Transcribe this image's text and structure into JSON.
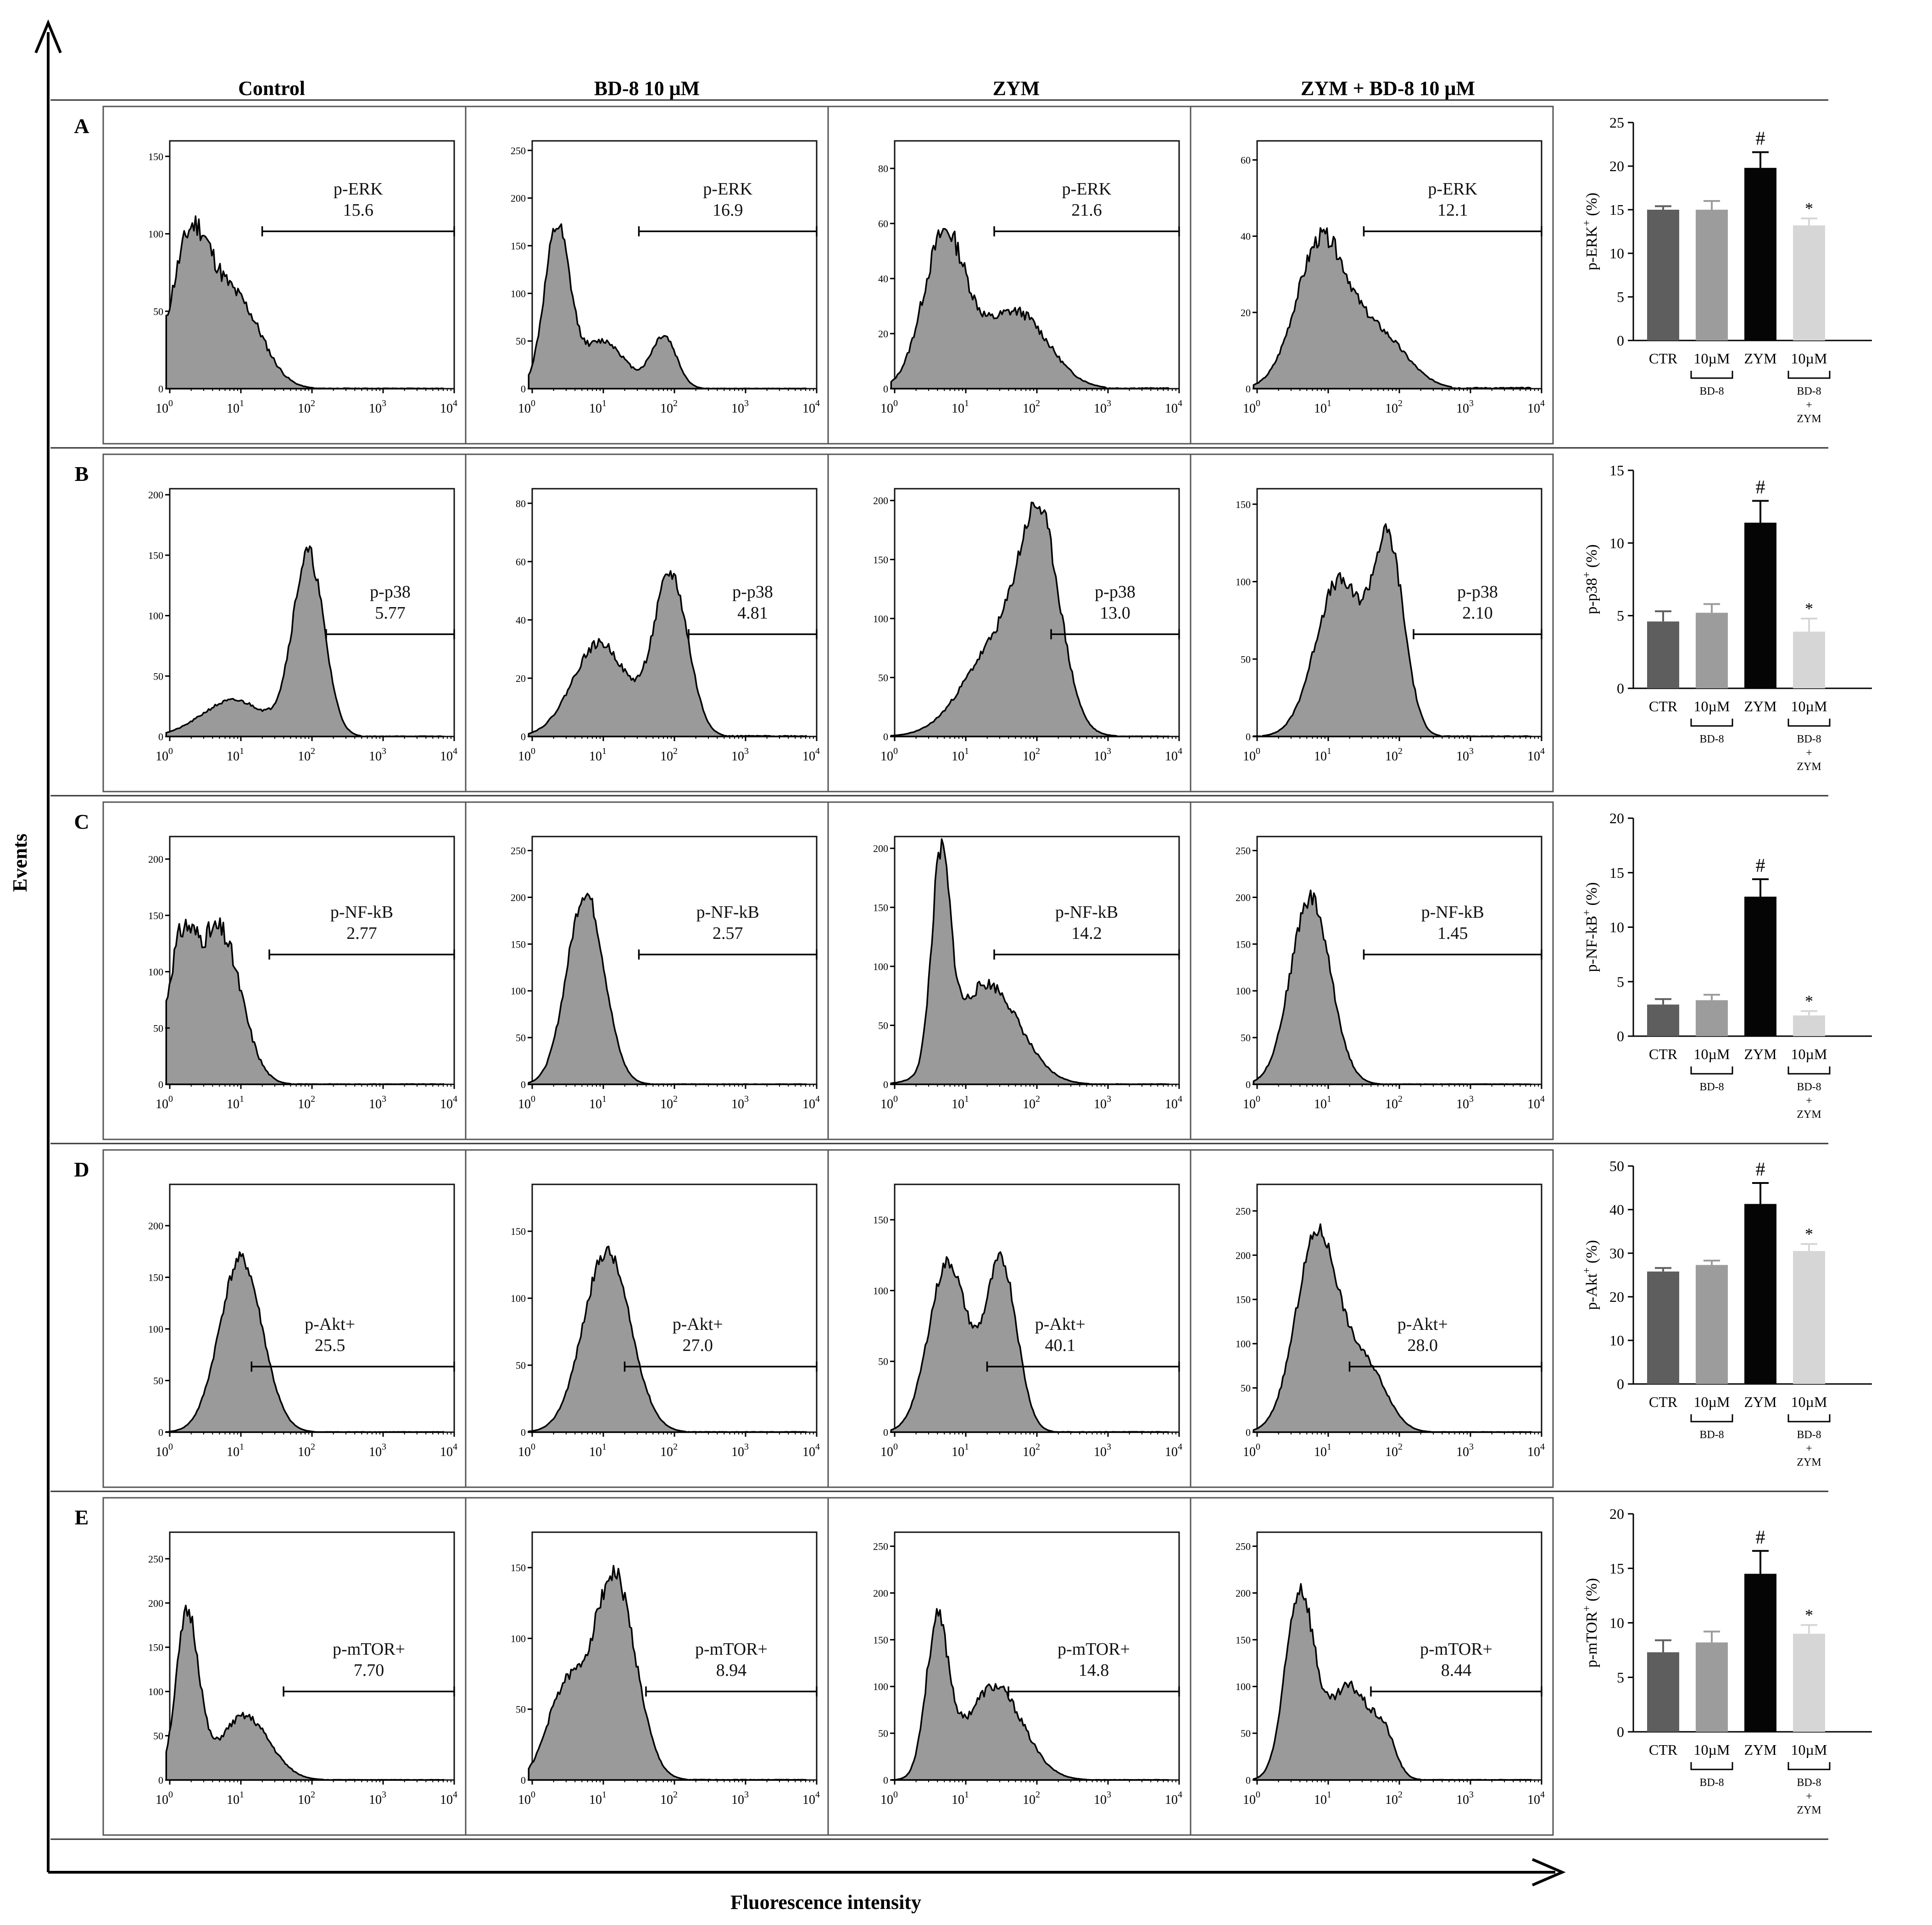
{
  "figure": {
    "columns": [
      "Control",
      "BD-8 10 μM",
      "ZYM",
      "ZYM + BD-8 10 μM"
    ],
    "y_axis_label": "Events",
    "x_axis_label": "Fluorescence intensity",
    "x_ticks": [
      {
        "base": "10",
        "exp": "0"
      },
      {
        "base": "10",
        "exp": "1"
      },
      {
        "base": "10",
        "exp": "2"
      },
      {
        "base": "10",
        "exp": "3"
      },
      {
        "base": "10",
        "exp": "4"
      }
    ],
    "bar_group_labels": {
      "bd8": "BD-8",
      "combo_line1": "BD-8",
      "combo_line2": "+",
      "combo_line3": "ZYM"
    }
  },
  "chart_data": [
    {
      "row": "A",
      "marker": "p-ERK",
      "histograms": [
        {
          "type": "histogram",
          "group": "Control",
          "label": "p-ERK",
          "value": "15.6",
          "ylim": [
            0,
            160
          ],
          "yticks": [
            0,
            50,
            100,
            150
          ],
          "gate": [
            1.3,
            4
          ],
          "peaks": [
            [
              0.3,
              95,
              0.28
            ],
            [
              0.95,
              55,
              0.35
            ]
          ],
          "noise": 0.16,
          "seed": 11
        },
        {
          "type": "histogram",
          "group": "BD-8 10 μM",
          "label": "p-ERK",
          "value": "16.9",
          "ylim": [
            0,
            260
          ],
          "yticks": [
            0,
            50,
            100,
            150,
            200,
            250
          ],
          "gate": [
            1.5,
            4
          ],
          "peaks": [
            [
              0.35,
              165,
              0.18
            ],
            [
              1.0,
              50,
              0.3
            ],
            [
              1.85,
              55,
              0.18
            ]
          ],
          "noise": 0.12,
          "seed": 12
        },
        {
          "type": "histogram",
          "group": "ZYM",
          "label": "p-ERK",
          "value": "21.6",
          "ylim": [
            0,
            90
          ],
          "yticks": [
            0,
            20,
            40,
            60,
            80
          ],
          "gate": [
            1.4,
            4
          ],
          "peaks": [
            [
              0.7,
              55,
              0.3
            ],
            [
              1.7,
              28,
              0.45
            ]
          ],
          "noise": 0.14,
          "seed": 13
        },
        {
          "type": "histogram",
          "group": "ZYM + BD-8 10 μM",
          "label": "p-ERK",
          "value": "12.1",
          "ylim": [
            0,
            65
          ],
          "yticks": [
            0,
            20,
            40,
            60
          ],
          "gate": [
            1.5,
            4
          ],
          "peaks": [
            [
              0.9,
              38,
              0.35
            ],
            [
              1.7,
              14,
              0.4
            ]
          ],
          "noise": 0.12,
          "seed": 14
        }
      ],
      "bars": {
        "type": "bar",
        "categories": [
          "CTR",
          "10µM",
          "ZYM",
          "10µM"
        ],
        "values": [
          15,
          15,
          19.8,
          13.2
        ],
        "errors": [
          0.4,
          1.0,
          1.8,
          0.8
        ],
        "marks": [
          "",
          "",
          "#",
          "*"
        ],
        "ylim": [
          0,
          25
        ],
        "yticks": [
          0,
          5,
          10,
          15,
          20,
          25
        ],
        "ylabel": "p-ERK",
        "ylabel_sup": "+",
        "ylabel_unit": "(%)"
      }
    },
    {
      "row": "B",
      "marker": "p-p38",
      "histograms": [
        {
          "type": "histogram",
          "group": "Control",
          "label": "p-p38",
          "value": "5.77",
          "ylim": [
            0,
            205
          ],
          "yticks": [
            0,
            50,
            100,
            150,
            200
          ],
          "gate": [
            2.2,
            4
          ],
          "peaks": [
            [
              0.9,
              30,
              0.45
            ],
            [
              1.95,
              150,
              0.22
            ]
          ],
          "noise": 0.1,
          "seed": 21
        },
        {
          "type": "histogram",
          "group": "BD-8 10 μM",
          "label": "p-p38",
          "value": "4.81",
          "ylim": [
            0,
            85
          ],
          "yticks": [
            0,
            20,
            40,
            60,
            80
          ],
          "gate": [
            2.2,
            4
          ],
          "peaks": [
            [
              0.95,
              32,
              0.38
            ],
            [
              1.95,
              55,
              0.24
            ]
          ],
          "noise": 0.1,
          "seed": 22
        },
        {
          "type": "histogram",
          "group": "ZYM",
          "label": "p-p38",
          "value": "13.0",
          "ylim": [
            0,
            210
          ],
          "yticks": [
            0,
            50,
            100,
            150,
            200
          ],
          "gate": [
            2.2,
            4
          ],
          "peaks": [
            [
              1.5,
              80,
              0.5
            ],
            [
              2.05,
              150,
              0.28
            ]
          ],
          "noise": 0.1,
          "seed": 23
        },
        {
          "type": "histogram",
          "group": "ZYM + BD-8 10 μM",
          "label": "p-p38",
          "value": "2.10",
          "ylim": [
            0,
            160
          ],
          "yticks": [
            0,
            50,
            100,
            150
          ],
          "gate": [
            2.2,
            4
          ],
          "peaks": [
            [
              1.15,
              100,
              0.33
            ],
            [
              1.85,
              120,
              0.22
            ]
          ],
          "noise": 0.1,
          "seed": 24
        }
      ],
      "bars": {
        "type": "bar",
        "categories": [
          "CTR",
          "10µM",
          "ZYM",
          "10µM"
        ],
        "values": [
          4.6,
          5.2,
          11.4,
          3.9
        ],
        "errors": [
          0.7,
          0.6,
          1.5,
          0.9
        ],
        "marks": [
          "",
          "",
          "#",
          "*"
        ],
        "ylim": [
          0,
          15
        ],
        "yticks": [
          0,
          5,
          10,
          15
        ],
        "ylabel": "p-p38",
        "ylabel_sup": "+",
        "ylabel_unit": "(%)"
      }
    },
    {
      "row": "C",
      "marker": "p-NF-kB",
      "histograms": [
        {
          "type": "histogram",
          "group": "Control",
          "label": "p-NF-kB",
          "value": "2.77",
          "ylim": [
            0,
            220
          ],
          "yticks": [
            0,
            50,
            100,
            150,
            200
          ],
          "gate": [
            1.4,
            4
          ],
          "peaks": [
            [
              0.15,
              110,
              0.2
            ],
            [
              0.7,
              135,
              0.3
            ]
          ],
          "noise": 0.16,
          "seed": 31
        },
        {
          "type": "histogram",
          "group": "BD-8 10 μM",
          "label": "p-NF-kB",
          "value": "2.57",
          "ylim": [
            0,
            265
          ],
          "yticks": [
            0,
            50,
            100,
            150,
            200,
            250
          ],
          "gate": [
            1.5,
            4
          ],
          "peaks": [
            [
              0.75,
              205,
              0.26
            ]
          ],
          "noise": 0.08,
          "seed": 32
        },
        {
          "type": "histogram",
          "group": "ZYM",
          "label": "p-NF-kB",
          "value": "14.2",
          "ylim": [
            0,
            210
          ],
          "yticks": [
            0,
            50,
            100,
            150,
            200
          ],
          "gate": [
            1.4,
            4
          ],
          "peaks": [
            [
              0.65,
              170,
              0.13
            ],
            [
              1.3,
              85,
              0.45
            ]
          ],
          "noise": 0.12,
          "seed": 33
        },
        {
          "type": "histogram",
          "group": "ZYM + BD-8 10 μM",
          "label": "p-NF-kB",
          "value": "1.45",
          "ylim": [
            0,
            265
          ],
          "yticks": [
            0,
            50,
            100,
            150,
            200,
            250
          ],
          "gate": [
            1.5,
            4
          ],
          "peaks": [
            [
              0.75,
              200,
              0.28
            ]
          ],
          "noise": 0.1,
          "seed": 34
        }
      ],
      "bars": {
        "type": "bar",
        "categories": [
          "CTR",
          "10µM",
          "ZYM",
          "10µM"
        ],
        "values": [
          2.9,
          3.3,
          12.8,
          1.9
        ],
        "errors": [
          0.5,
          0.5,
          1.6,
          0.4
        ],
        "marks": [
          "",
          "",
          "#",
          "*"
        ],
        "ylim": [
          0,
          20
        ],
        "yticks": [
          0,
          5,
          10,
          15,
          20
        ],
        "ylabel": "p-NF-kB",
        "ylabel_sup": "+",
        "ylabel_unit": "(%)"
      }
    },
    {
      "row": "D",
      "marker": "p-Akt+",
      "histograms": [
        {
          "type": "histogram",
          "group": "Control",
          "label": "p-Akt+",
          "value": "25.5",
          "ylim": [
            0,
            240
          ],
          "yticks": [
            0,
            50,
            100,
            150,
            200
          ],
          "gate": [
            1.15,
            4
          ],
          "peaks": [
            [
              1.0,
              168,
              0.3
            ]
          ],
          "noise": 0.08,
          "seed": 41
        },
        {
          "type": "histogram",
          "group": "BD-8 10 μM",
          "label": "p-Akt+",
          "value": "27.0",
          "ylim": [
            0,
            185
          ],
          "yticks": [
            0,
            50,
            100,
            150
          ],
          "gate": [
            1.3,
            4
          ],
          "peaks": [
            [
              1.05,
              135,
              0.33
            ]
          ],
          "noise": 0.08,
          "seed": 42
        },
        {
          "type": "histogram",
          "group": "ZYM",
          "label": "p-Akt+",
          "value": "40.1",
          "ylim": [
            0,
            175
          ],
          "yticks": [
            0,
            50,
            100,
            150
          ],
          "gate": [
            1.3,
            4
          ],
          "peaks": [
            [
              0.75,
              120,
              0.27
            ],
            [
              1.5,
              120,
              0.22
            ]
          ],
          "noise": 0.08,
          "seed": 43
        },
        {
          "type": "histogram",
          "group": "ZYM + BD-8 10 μM",
          "label": "p-Akt+",
          "value": "28.0",
          "ylim": [
            0,
            280
          ],
          "yticks": [
            0,
            50,
            100,
            150,
            200,
            250
          ],
          "gate": [
            1.3,
            4
          ],
          "peaks": [
            [
              0.85,
              225,
              0.3
            ],
            [
              1.55,
              70,
              0.28
            ]
          ],
          "noise": 0.08,
          "seed": 44
        }
      ],
      "bars": {
        "type": "bar",
        "categories": [
          "CTR",
          "10µM",
          "ZYM",
          "10µM"
        ],
        "values": [
          25.8,
          27.3,
          41.3,
          30.5
        ],
        "errors": [
          0.8,
          1.0,
          4.8,
          1.6
        ],
        "marks": [
          "",
          "",
          "#",
          "*"
        ],
        "ylim": [
          0,
          50
        ],
        "yticks": [
          0,
          10,
          20,
          30,
          40,
          50
        ],
        "ylabel": "p-Akt",
        "ylabel_sup": "+",
        "ylabel_unit": "(%)"
      }
    },
    {
      "row": "E",
      "marker": "p-mTOR+",
      "histograms": [
        {
          "type": "histogram",
          "group": "Control",
          "label": "p-mTOR+",
          "value": "7.70",
          "ylim": [
            0,
            280
          ],
          "yticks": [
            0,
            50,
            100,
            150,
            200,
            250
          ],
          "gate": [
            1.6,
            4
          ],
          "peaks": [
            [
              0.25,
              185,
              0.16
            ],
            [
              1.05,
              72,
              0.35
            ]
          ],
          "noise": 0.12,
          "seed": 51
        },
        {
          "type": "histogram",
          "group": "BD-8 10 μM",
          "label": "p-mTOR+",
          "value": "8.94",
          "ylim": [
            0,
            175
          ],
          "yticks": [
            0,
            50,
            100,
            150
          ],
          "gate": [
            1.6,
            4
          ],
          "peaks": [
            [
              0.45,
              60,
              0.25
            ],
            [
              1.15,
              145,
              0.3
            ]
          ],
          "noise": 0.1,
          "seed": 52
        },
        {
          "type": "histogram",
          "group": "ZYM",
          "label": "p-mTOR+",
          "value": "14.8",
          "ylim": [
            0,
            265
          ],
          "yticks": [
            0,
            50,
            100,
            150,
            200,
            250
          ],
          "gate": [
            1.6,
            4
          ],
          "peaks": [
            [
              0.6,
              160,
              0.16
            ],
            [
              1.4,
              100,
              0.4
            ]
          ],
          "noise": 0.12,
          "seed": 53
        },
        {
          "type": "histogram",
          "group": "ZYM + BD-8 10 μM",
          "label": "p-mTOR+",
          "value": "8.44",
          "ylim": [
            0,
            265
          ],
          "yticks": [
            0,
            50,
            100,
            150,
            200,
            250
          ],
          "gate": [
            1.6,
            4
          ],
          "peaks": [
            [
              0.6,
              200,
              0.2
            ],
            [
              1.3,
              100,
              0.3
            ],
            [
              1.8,
              35,
              0.15
            ]
          ],
          "noise": 0.12,
          "seed": 54
        }
      ],
      "bars": {
        "type": "bar",
        "categories": [
          "CTR",
          "10µM",
          "ZYM",
          "10µM"
        ],
        "values": [
          7.3,
          8.2,
          14.5,
          9.0
        ],
        "errors": [
          1.1,
          1.0,
          2.1,
          0.8
        ],
        "marks": [
          "",
          "",
          "#",
          "*"
        ],
        "ylim": [
          0,
          20
        ],
        "yticks": [
          0,
          5,
          10,
          15,
          20
        ],
        "ylabel": "p-mTOR",
        "ylabel_sup": "+",
        "ylabel_unit": "(%)"
      }
    }
  ]
}
